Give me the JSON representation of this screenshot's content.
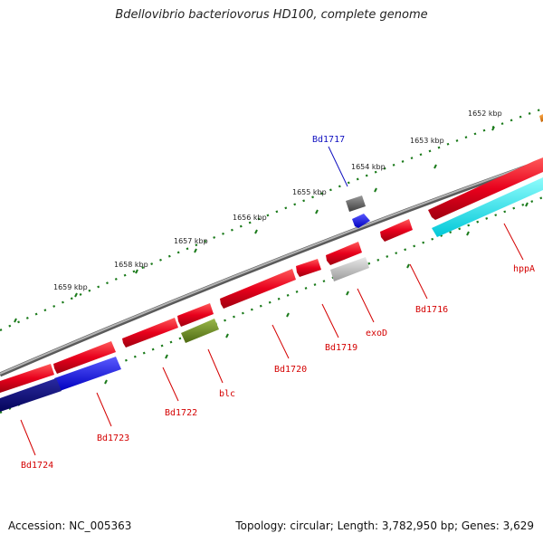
{
  "title": "Bdellovibrio bacteriovorus HD100, complete genome",
  "accession": "Accession: NC_005363",
  "summary": "Topology: circular; Length: 3,782,950 bp; Genes: 3,629",
  "colors": {
    "backbone": "#8c8c8c",
    "tick_dots": "#1a7a1a",
    "gene_red": "#e8001c",
    "gene_blue": "#1a1aff",
    "gene_navy": "#0a0a80",
    "gene_cyan": "#10f0f0",
    "gene_olive": "#6e8c1e",
    "gene_gray": "#6a6a6a",
    "gene_lightgray": "#c0c0c0",
    "gene_orange": "#e07a10",
    "label_red": "#d40000",
    "label_blue": "#1010c0"
  },
  "kbp_ticks": [
    "1652 kbp",
    "1653 kbp",
    "1654 kbp",
    "1655 kbp",
    "1656 kbp",
    "1657 kbp",
    "1658 kbp",
    "1659 kbp"
  ],
  "gene_labels": [
    {
      "name": "Bd1717",
      "color": "label_blue"
    },
    {
      "name": "hppA",
      "color": "label_red"
    },
    {
      "name": "Bd1716",
      "color": "label_red"
    },
    {
      "name": "exoD",
      "color": "label_red"
    },
    {
      "name": "Bd1719",
      "color": "label_red"
    },
    {
      "name": "Bd1720",
      "color": "label_red"
    },
    {
      "name": "blc",
      "color": "label_red"
    },
    {
      "name": "Bd1722",
      "color": "label_red"
    },
    {
      "name": "Bd1723",
      "color": "label_red"
    },
    {
      "name": "Bd1724",
      "color": "label_red"
    }
  ]
}
